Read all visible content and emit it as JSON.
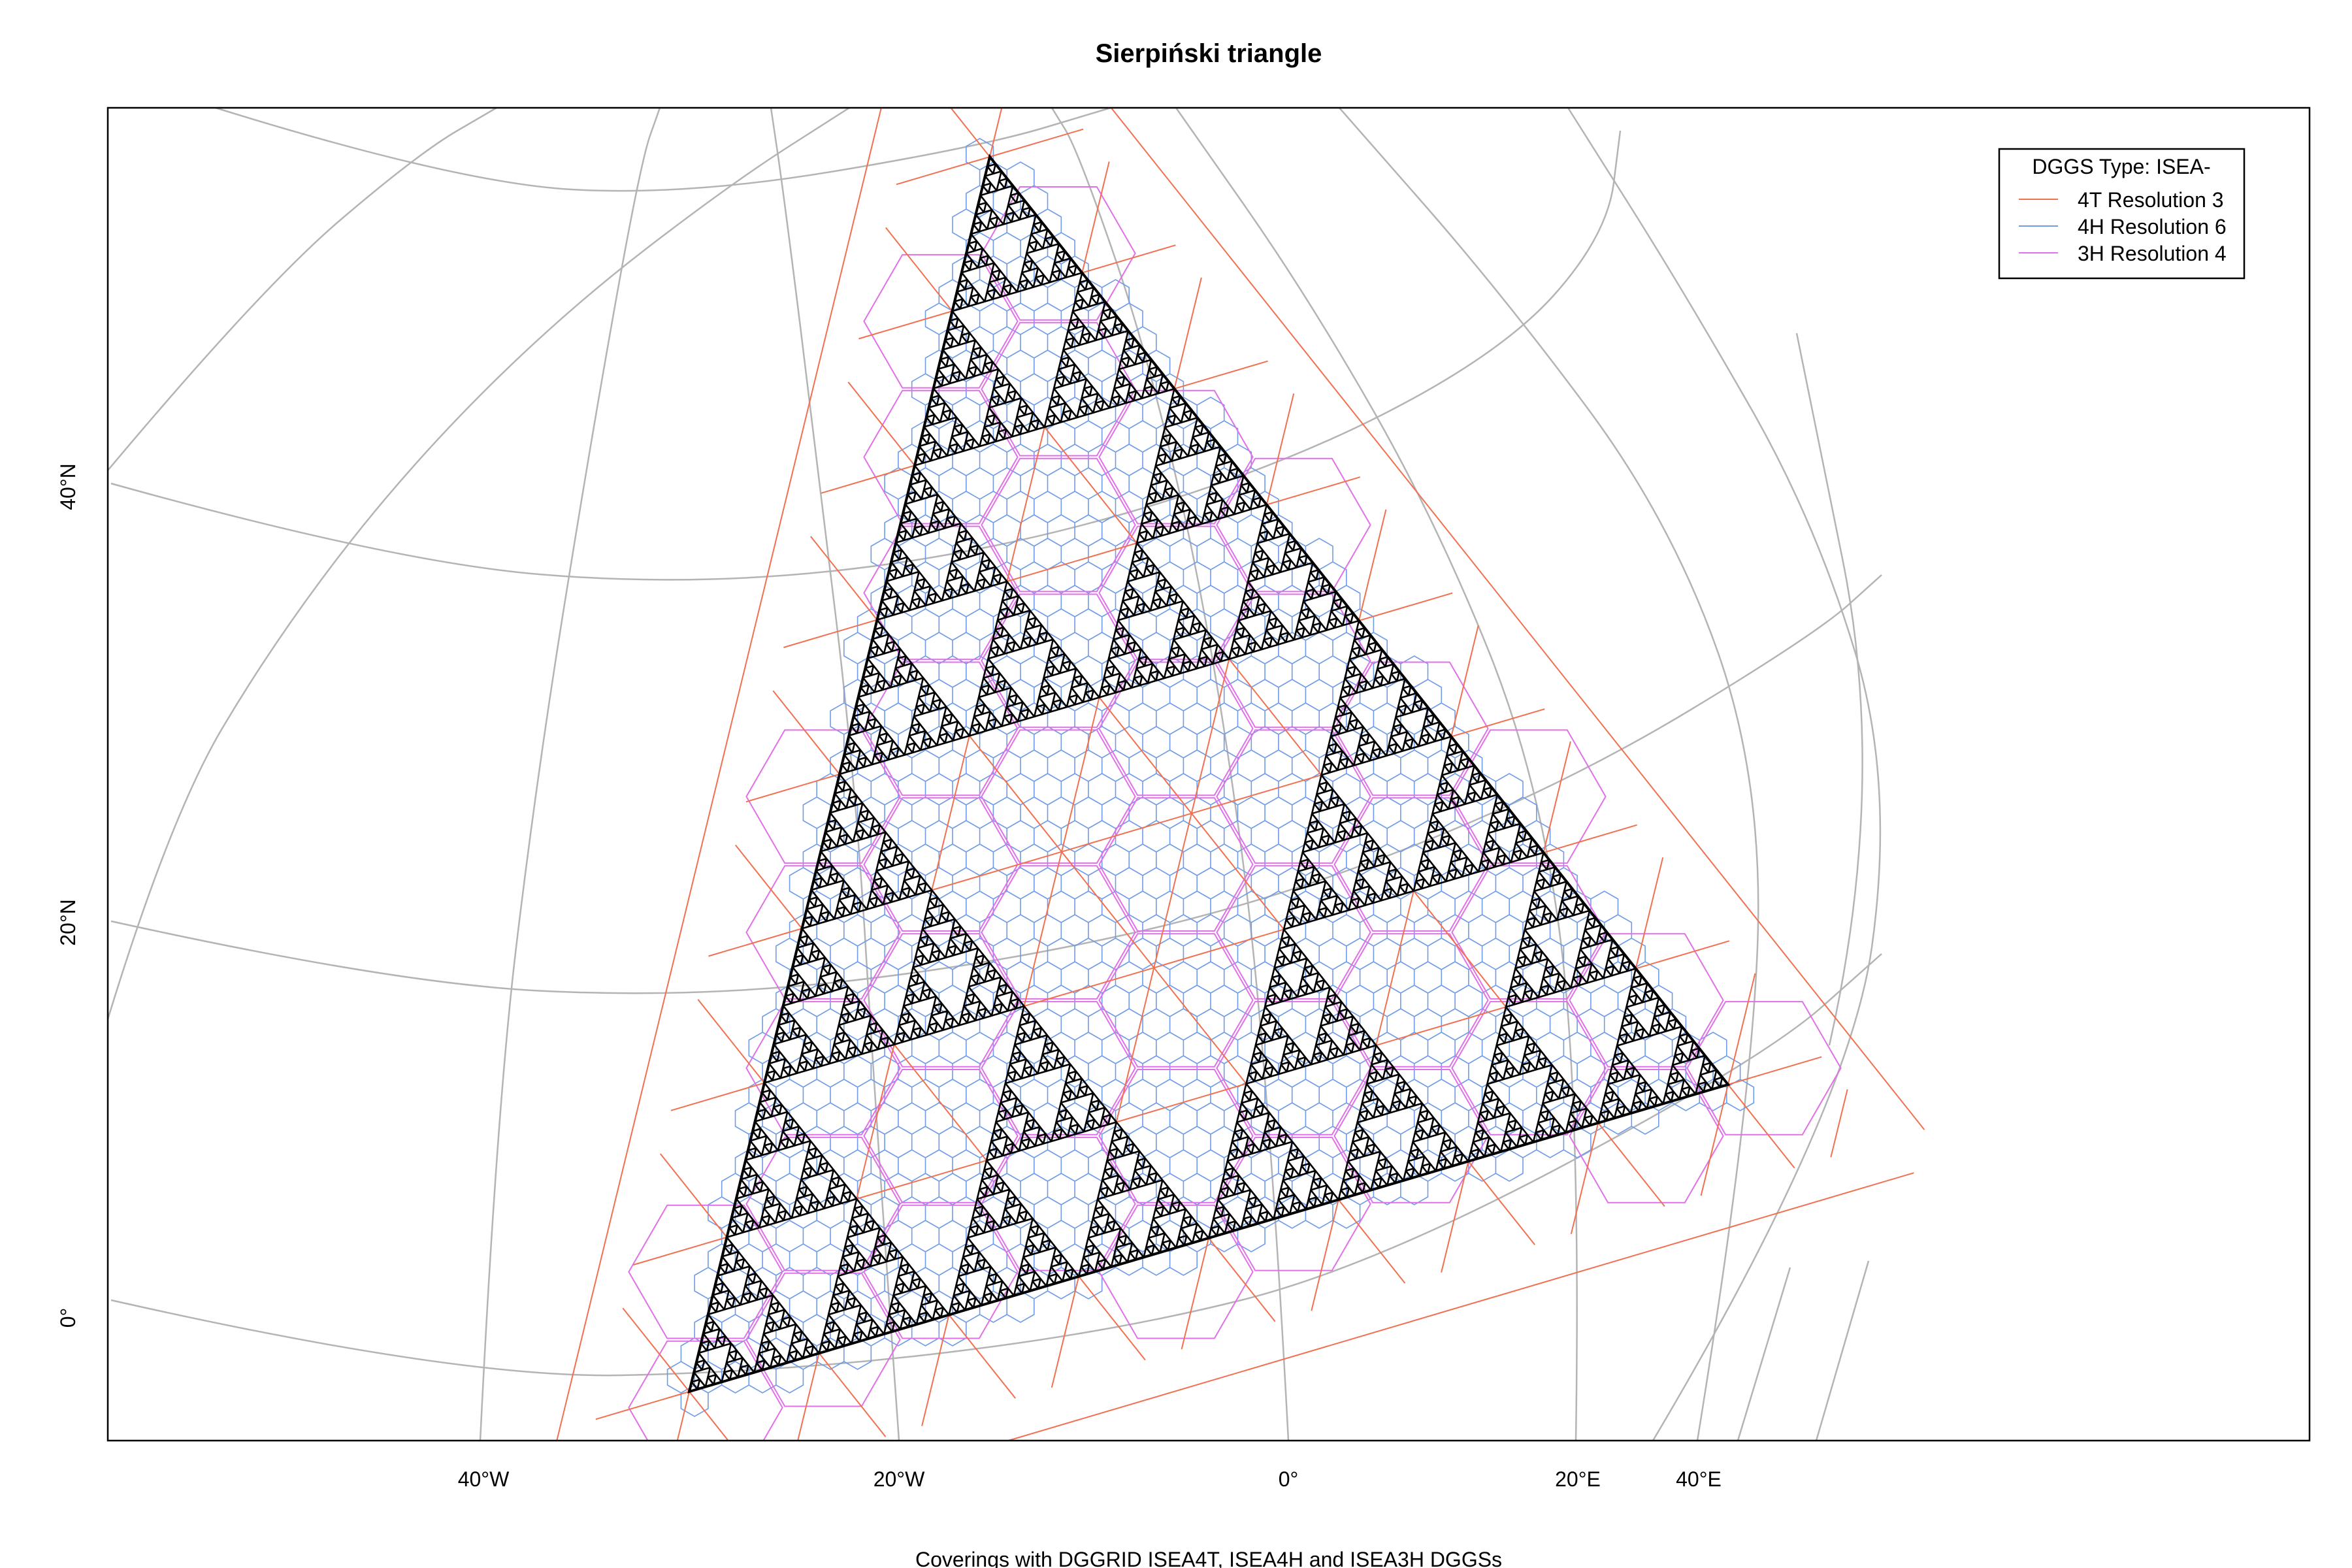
{
  "figure": {
    "title": "Sierpiński triangle",
    "subtitle": "Coverings with DGGRID ISEA4T, ISEA4H and ISEA3H DGGSs"
  },
  "axes": {
    "x_ticks": [
      "40°W",
      "20°W",
      "0°",
      "20°E",
      "40°E"
    ],
    "y_ticks": [
      "0°",
      "20°N",
      "40°N"
    ]
  },
  "legend": {
    "title": "DGGS Type: ISEA-",
    "placement": "top-right",
    "items": [
      {
        "label": "4T Resolution 3",
        "color": "#f07050"
      },
      {
        "label": "4H Resolution 6",
        "color": "#6f9be8"
      },
      {
        "label": "3H Resolution 4",
        "color": "#e070e8"
      }
    ]
  },
  "colors": {
    "graticule": "#b4b4b4",
    "fractal": "#000000",
    "frame": "#000000"
  },
  "chart_data": {
    "type": "map",
    "projection": "orthographic-like",
    "fractal": {
      "name": "Sierpiński triangle",
      "depth_shown": 7
    },
    "x_ticks": [
      -40,
      -20,
      0,
      20,
      40
    ],
    "y_ticks": [
      0,
      20,
      40
    ],
    "series": [
      {
        "name": "4T Resolution 3",
        "color": "#f07050"
      },
      {
        "name": "4H Resolution 6",
        "color": "#6f9be8"
      },
      {
        "name": "3H Resolution 4",
        "color": "#e070e8"
      }
    ]
  }
}
